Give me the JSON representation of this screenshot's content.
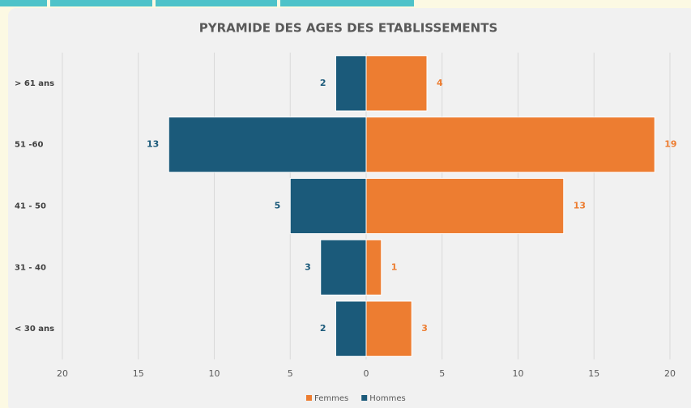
{
  "chart_data": {
    "type": "pyramid",
    "title": "PYRAMIDE DES AGES DES ETABLISSEMENTS",
    "categories": [
      "> 61 ans",
      "51 -60",
      "41 - 50",
      "31 - 40",
      "< 30 ans"
    ],
    "series": [
      {
        "name": "Femmes",
        "color": "#ed7d31",
        "values": [
          4,
          19,
          13,
          1,
          3
        ]
      },
      {
        "name": "Hommes",
        "color": "#1b5a7a",
        "values": [
          2,
          13,
          5,
          3,
          2
        ]
      }
    ],
    "xlim": [
      -20,
      20
    ],
    "xticks": [
      {
        "value": -20,
        "label": "20"
      },
      {
        "value": -15,
        "label": "15"
      },
      {
        "value": -10,
        "label": "10"
      },
      {
        "value": -5,
        "label": "5"
      },
      0,
      5,
      10,
      15,
      20
    ],
    "grid": true,
    "legend": "bottom"
  }
}
